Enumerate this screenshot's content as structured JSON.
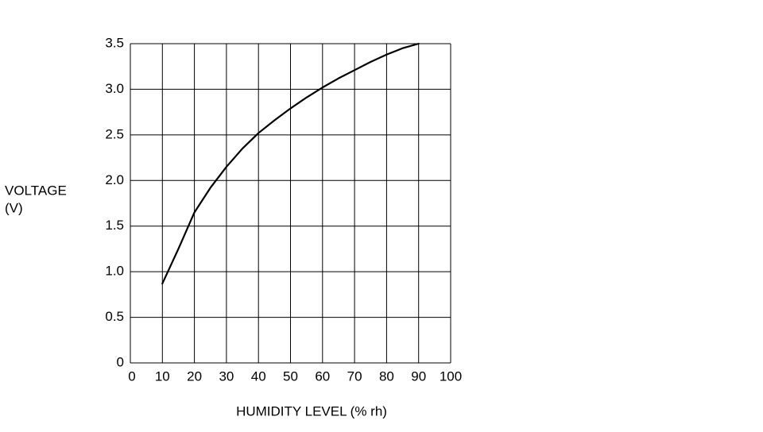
{
  "chart_data": {
    "type": "line",
    "x_label": "HUMIDITY LEVEL (% rh)",
    "y_label": [
      "VOLTAGE",
      "(V)"
    ],
    "series": [
      {
        "color": "#000000",
        "x": [
          10,
          15,
          20,
          25,
          30,
          35,
          40,
          45,
          50,
          55,
          60,
          65,
          70,
          75,
          80,
          85,
          90
        ],
        "values": [
          0.87,
          1.25,
          1.65,
          1.92,
          2.15,
          2.35,
          2.52,
          2.66,
          2.79,
          2.91,
          3.02,
          3.12,
          3.21,
          3.3,
          3.38,
          3.45,
          3.5
        ]
      }
    ],
    "xlim": [
      0,
      100
    ],
    "xticks": [
      0,
      10,
      20,
      30,
      40,
      50,
      60,
      70,
      80,
      90,
      100
    ],
    "ylim": [
      0,
      3.5
    ],
    "yticks": [
      0,
      0.5,
      {
        "value": 1,
        "label": "1.0"
      },
      1.5,
      {
        "value": 2,
        "label": "2.0"
      },
      2.5,
      {
        "value": 3,
        "label": "3.0"
      },
      3.5
    ],
    "grid": true
  }
}
